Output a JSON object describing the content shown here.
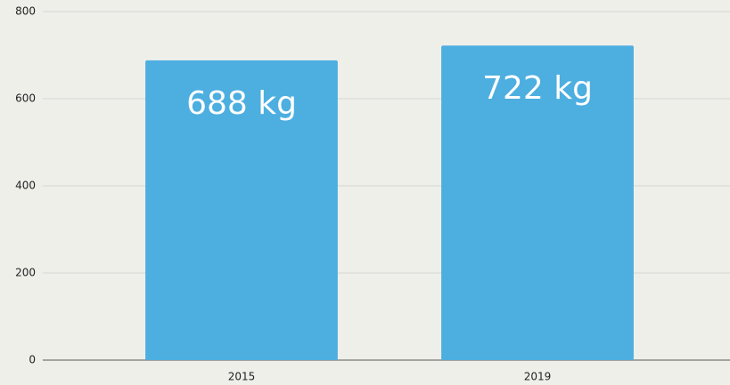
{
  "chart_data": {
    "type": "bar",
    "categories": [
      "2015",
      "2019"
    ],
    "values": [
      688,
      722
    ],
    "value_labels": [
      "688 kg",
      "722 kg"
    ],
    "color": "#4daee0",
    "ylim": [
      0,
      800
    ],
    "yticks": [
      0,
      200,
      400,
      600,
      800
    ],
    "grid": true
  }
}
